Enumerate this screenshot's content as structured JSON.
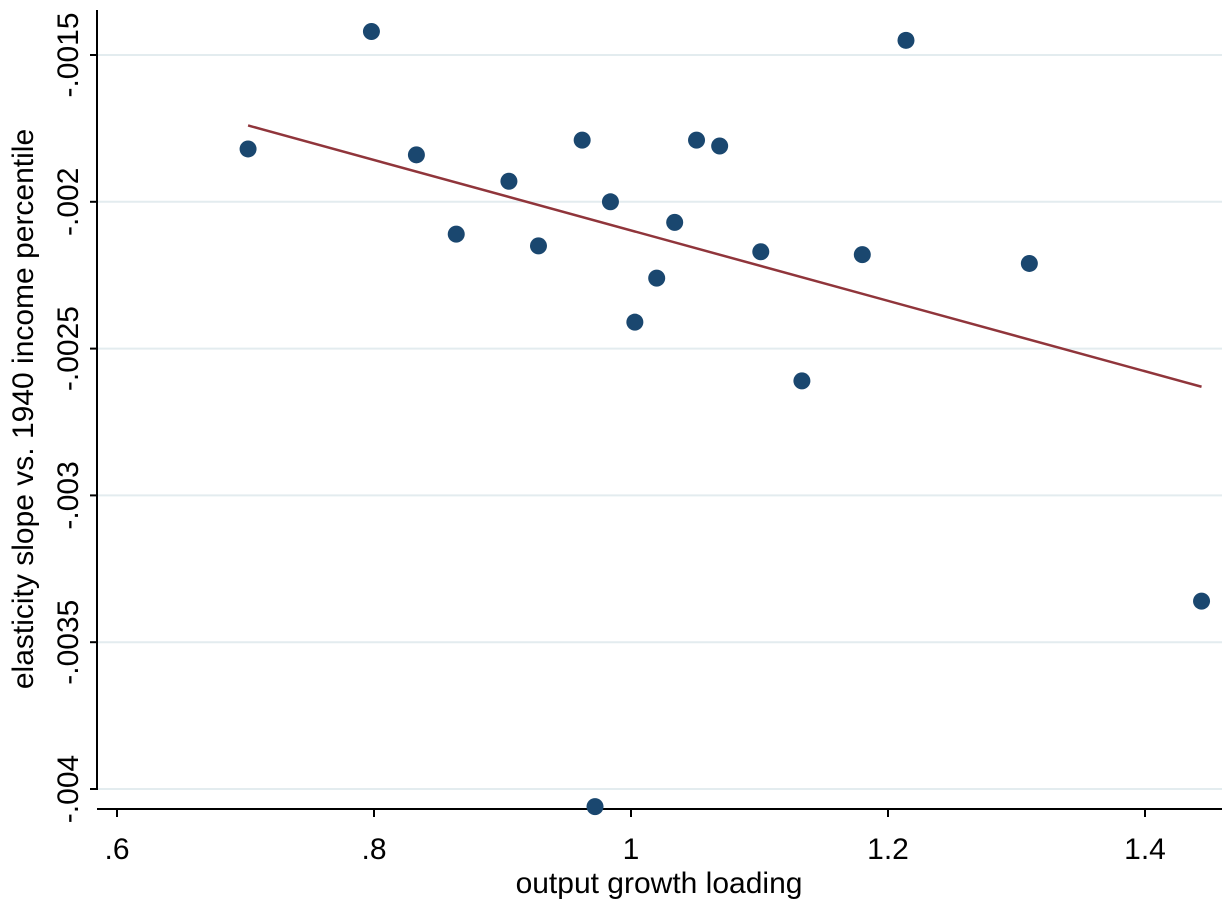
{
  "chart_data": {
    "type": "scatter",
    "title": "",
    "xlabel": "output growth loading",
    "ylabel": "elasticity slope vs. 1940 income percentile",
    "xlim": [
      0.6,
      1.45
    ],
    "ylim": [
      -0.004,
      -0.0015
    ],
    "xticks": [
      0.6,
      0.8,
      1.0,
      1.2,
      1.4
    ],
    "xtick_labels": [
      ".6",
      ".8",
      "1",
      "1.2",
      "1.4"
    ],
    "yticks": [
      -0.004,
      -0.0035,
      -0.003,
      -0.0025,
      -0.002,
      -0.0015
    ],
    "ytick_labels": [
      "-.004",
      "-.0035",
      "-.003",
      "-.0025",
      "-.002",
      "-.0015"
    ],
    "grid": "horizontal",
    "legend": "none",
    "colors": {
      "points": "#1a476f",
      "fit_line": "#90353b",
      "grid": "#e3ecef"
    },
    "series": [
      {
        "type": "scatter",
        "points": [
          {
            "x": 0.702,
            "y": -0.00182
          },
          {
            "x": 0.798,
            "y": -0.00142
          },
          {
            "x": 0.833,
            "y": -0.00184
          },
          {
            "x": 0.864,
            "y": -0.00211
          },
          {
            "x": 0.905,
            "y": -0.00193
          },
          {
            "x": 0.928,
            "y": -0.00215
          },
          {
            "x": 0.962,
            "y": -0.00179
          },
          {
            "x": 0.972,
            "y": -0.00406
          },
          {
            "x": 0.984,
            "y": -0.002
          },
          {
            "x": 1.003,
            "y": -0.00241
          },
          {
            "x": 1.02,
            "y": -0.00226
          },
          {
            "x": 1.034,
            "y": -0.00207
          },
          {
            "x": 1.051,
            "y": -0.00179
          },
          {
            "x": 1.069,
            "y": -0.00181
          },
          {
            "x": 1.101,
            "y": -0.00217
          },
          {
            "x": 1.133,
            "y": -0.00261
          },
          {
            "x": 1.18,
            "y": -0.00218
          },
          {
            "x": 1.214,
            "y": -0.00145
          },
          {
            "x": 1.31,
            "y": -0.00221
          },
          {
            "x": 1.444,
            "y": -0.00336
          }
        ]
      },
      {
        "type": "line",
        "points": [
          {
            "x": 0.702,
            "y": -0.00174
          },
          {
            "x": 1.444,
            "y": -0.00263
          }
        ]
      }
    ]
  }
}
